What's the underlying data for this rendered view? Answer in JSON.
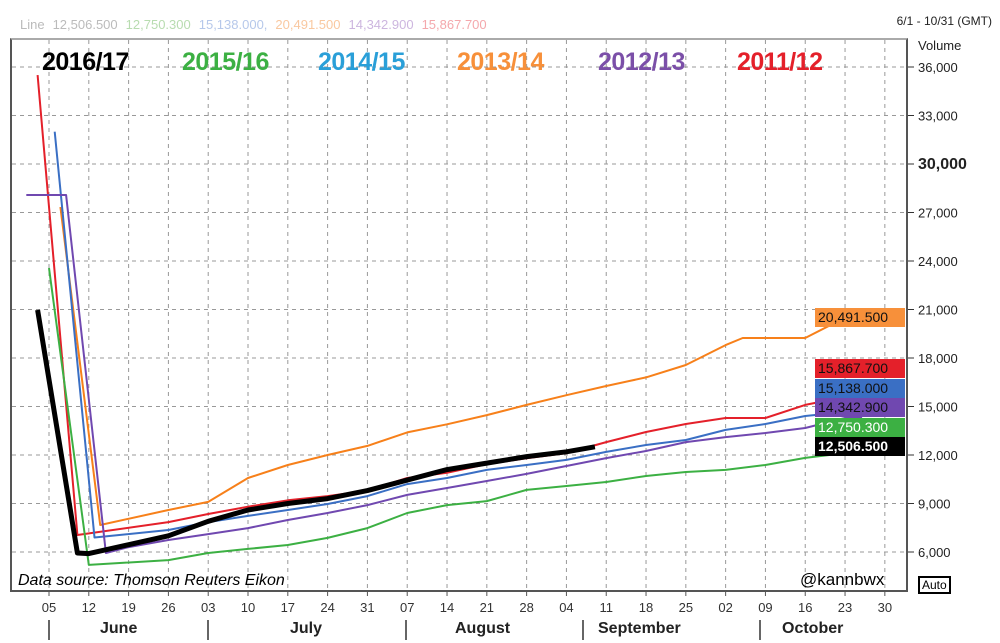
{
  "header": {
    "range": "6/1 - 10/31 (GMT)",
    "axis_unit": "Volume",
    "auto_button": "Auto"
  },
  "faded_line_readout": [
    "Line",
    "12,506.500",
    "12,750.300",
    "15,138.000,",
    "20,491.500",
    "14,342.900",
    "15,867.700"
  ],
  "faded_colors": [
    "#bbb",
    "#bbb",
    "#b8dcb0",
    "#b6c8ea",
    "#f9c8a0",
    "#cdb6df",
    "#f4a8ac"
  ],
  "source": "Data source: Thomson Reuters Eikon",
  "handle": "@kannbwx",
  "chart_data": {
    "type": "line",
    "x_axis": {
      "ticks": [
        "05",
        "12",
        "19",
        "26",
        "03",
        "10",
        "17",
        "24",
        "31",
        "07",
        "14",
        "21",
        "28",
        "04",
        "11",
        "18",
        "25",
        "02",
        "09",
        "16",
        "23",
        "30"
      ],
      "tick_dates": [
        "06-05",
        "06-12",
        "06-19",
        "06-26",
        "07-03",
        "07-10",
        "07-17",
        "07-24",
        "07-31",
        "08-07",
        "08-14",
        "08-21",
        "08-28",
        "09-04",
        "09-11",
        "09-18",
        "09-25",
        "10-02",
        "10-09",
        "10-16",
        "10-23",
        "10-30"
      ],
      "months": [
        "June",
        "July",
        "August",
        "September",
        "October"
      ],
      "range": [
        "06-01",
        "10-31"
      ]
    },
    "y_axis": {
      "ticks": [
        "6,000",
        "9,000",
        "12,000",
        "15,000",
        "18,000",
        "21,000",
        "24,000",
        "27,000",
        "30,000",
        "33,000",
        "36,000"
      ],
      "tick_values": [
        6000,
        9000,
        12000,
        15000,
        18000,
        21000,
        24000,
        27000,
        30000,
        33000,
        36000
      ],
      "range": [
        4000,
        37800
      ],
      "position": "right"
    },
    "grid": true,
    "legend_placement": "top-left",
    "series": [
      {
        "name": "2016/17",
        "color": "#000000",
        "last": "12,506.500",
        "label_text": "#ffffff",
        "points": [
          [
            "06-03",
            20970
          ],
          [
            "06-10",
            5940
          ],
          [
            "06-12",
            5900
          ],
          [
            "06-26",
            7000
          ],
          [
            "07-03",
            7900
          ],
          [
            "07-10",
            8600
          ],
          [
            "07-17",
            9000
          ],
          [
            "07-24",
            9300
          ],
          [
            "07-31",
            9800
          ],
          [
            "08-07",
            10450
          ],
          [
            "08-14",
            11100
          ],
          [
            "08-21",
            11500
          ],
          [
            "08-28",
            11900
          ],
          [
            "09-04",
            12200
          ],
          [
            "09-09",
            12506
          ]
        ]
      },
      {
        "name": "2015/16",
        "color": "#3cb043",
        "last": "12,750.300",
        "label_text": "#ffffff",
        "points": [
          [
            "06-05",
            23570
          ],
          [
            "06-12",
            5200
          ],
          [
            "06-26",
            5500
          ],
          [
            "07-03",
            5940
          ],
          [
            "07-10",
            6190
          ],
          [
            "07-17",
            6430
          ],
          [
            "07-24",
            6870
          ],
          [
            "07-31",
            7480
          ],
          [
            "08-07",
            8410
          ],
          [
            "08-14",
            8900
          ],
          [
            "08-21",
            9150
          ],
          [
            "08-28",
            9840
          ],
          [
            "09-04",
            10080
          ],
          [
            "09-11",
            10330
          ],
          [
            "09-18",
            10700
          ],
          [
            "09-25",
            10950
          ],
          [
            "10-02",
            11080
          ],
          [
            "10-09",
            11380
          ],
          [
            "10-16",
            11820
          ],
          [
            "10-23",
            12120
          ],
          [
            "10-30",
            12750
          ]
        ]
      },
      {
        "name": "2014/15",
        "color": "#2a9fd8",
        "line_color": "#3a6fc4",
        "last": "15,138.000",
        "label_text": "#111111",
        "points": [
          [
            "06-06",
            32000
          ],
          [
            "06-13",
            6900
          ],
          [
            "06-26",
            7360
          ],
          [
            "07-03",
            7850
          ],
          [
            "07-10",
            8230
          ],
          [
            "07-17",
            8600
          ],
          [
            "07-24",
            8970
          ],
          [
            "07-31",
            9460
          ],
          [
            "08-07",
            10200
          ],
          [
            "08-14",
            10580
          ],
          [
            "08-21",
            11080
          ],
          [
            "08-28",
            11380
          ],
          [
            "09-04",
            11700
          ],
          [
            "09-11",
            12190
          ],
          [
            "09-18",
            12620
          ],
          [
            "09-25",
            12930
          ],
          [
            "10-02",
            13550
          ],
          [
            "10-09",
            13920
          ],
          [
            "10-16",
            14410
          ],
          [
            "10-23",
            14660
          ],
          [
            "10-30",
            15138
          ]
        ]
      },
      {
        "name": "2013/14",
        "color": "#f7903a",
        "line_color": "#f7801a",
        "last": "20,491.500",
        "label_text": "#111111",
        "points": [
          [
            "06-07",
            27340
          ],
          [
            "06-14",
            7670
          ],
          [
            "06-26",
            8600
          ],
          [
            "07-03",
            9100
          ],
          [
            "07-10",
            10580
          ],
          [
            "07-17",
            11380
          ],
          [
            "07-24",
            12000
          ],
          [
            "07-31",
            12560
          ],
          [
            "08-07",
            13400
          ],
          [
            "08-14",
            13900
          ],
          [
            "08-21",
            14470
          ],
          [
            "08-28",
            15100
          ],
          [
            "09-04",
            15700
          ],
          [
            "09-11",
            16270
          ],
          [
            "09-18",
            16800
          ],
          [
            "09-25",
            17570
          ],
          [
            "10-02",
            18800
          ],
          [
            "10-05",
            19240
          ],
          [
            "10-16",
            19240
          ],
          [
            "10-23",
            20491
          ]
        ]
      },
      {
        "name": "2012/13",
        "color": "#7b4fa8",
        "line_color": "#7048b0",
        "last": "14,342.900",
        "label_text": "#111111",
        "points": [
          [
            "06-01",
            28080
          ],
          [
            "06-08",
            28080
          ],
          [
            "06-15",
            5940
          ],
          [
            "06-19",
            6300
          ],
          [
            "06-26",
            6740
          ],
          [
            "07-03",
            7110
          ],
          [
            "07-10",
            7480
          ],
          [
            "07-17",
            7980
          ],
          [
            "07-24",
            8410
          ],
          [
            "07-31",
            8900
          ],
          [
            "08-07",
            9530
          ],
          [
            "08-14",
            9960
          ],
          [
            "08-21",
            10390
          ],
          [
            "08-28",
            10830
          ],
          [
            "09-04",
            11320
          ],
          [
            "09-11",
            11810
          ],
          [
            "09-18",
            12250
          ],
          [
            "09-25",
            12800
          ],
          [
            "10-02",
            13110
          ],
          [
            "10-09",
            13360
          ],
          [
            "10-16",
            13670
          ],
          [
            "10-23",
            14290
          ],
          [
            "10-26",
            14343
          ]
        ]
      },
      {
        "name": "2011/12",
        "color": "#e4202a",
        "last": "15,867.700",
        "label_text": "#111111",
        "points": [
          [
            "06-03",
            35500
          ],
          [
            "06-10",
            7050
          ],
          [
            "06-26",
            7850
          ],
          [
            "07-03",
            8350
          ],
          [
            "07-10",
            8800
          ],
          [
            "07-17",
            9200
          ],
          [
            "07-24",
            9460
          ],
          [
            "07-31",
            9800
          ],
          [
            "08-07",
            10580
          ],
          [
            "08-14",
            10900
          ],
          [
            "08-21",
            11440
          ],
          [
            "08-28",
            11800
          ],
          [
            "09-04",
            12120
          ],
          [
            "09-11",
            12800
          ],
          [
            "09-18",
            13420
          ],
          [
            "09-25",
            13920
          ],
          [
            "10-02",
            14290
          ],
          [
            "10-09",
            14290
          ],
          [
            "10-16",
            15100
          ],
          [
            "10-23",
            15590
          ],
          [
            "10-27",
            15868
          ]
        ]
      }
    ]
  }
}
